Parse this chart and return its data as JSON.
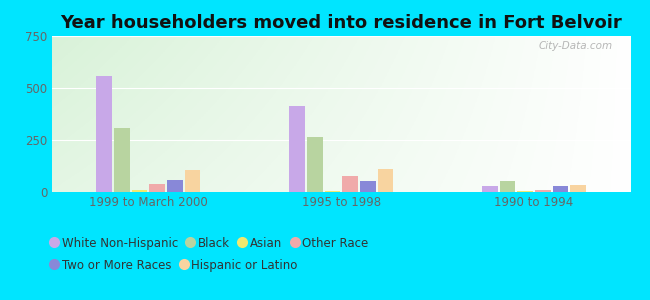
{
  "title": "Year householders moved into residence in Fort Belvoir",
  "categories": [
    "1999 to March 2000",
    "1995 to 1998",
    "1990 to 1994"
  ],
  "series": {
    "White Non-Hispanic": [
      560,
      415,
      30
    ],
    "Black": [
      310,
      265,
      55
    ],
    "Asian": [
      12,
      5,
      5
    ],
    "Other Race": [
      40,
      75,
      10
    ],
    "Two or More Races": [
      60,
      55,
      28
    ],
    "Hispanic or Latino": [
      105,
      110,
      32
    ]
  },
  "colors": {
    "White Non-Hispanic": "#c8a8e8",
    "Black": "#b8d4a0",
    "Asian": "#f0e870",
    "Other Race": "#f0aaaa",
    "Two or More Races": "#8888d8",
    "Hispanic or Latino": "#f8d4a0"
  },
  "ylim": [
    0,
    750
  ],
  "yticks": [
    0,
    250,
    500,
    750
  ],
  "background_outer": "#00e5ff",
  "watermark": "City-Data.com",
  "title_fontsize": 13,
  "legend_fontsize": 8.5
}
